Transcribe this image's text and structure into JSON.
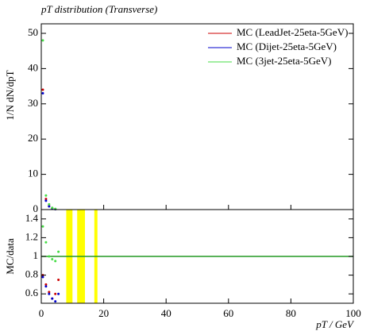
{
  "chart_data": [
    {
      "type": "scatter",
      "title": "pT distribution (Transverse)",
      "y_label": "1/N dN/dpT",
      "xlim": [
        0,
        100
      ],
      "ylim": [
        0,
        52.7
      ],
      "yticks": [
        0,
        10,
        20,
        30,
        40,
        50
      ],
      "legend": "top-right",
      "series": [
        {
          "name": "MC (LeadJet-25eta-5GeV)",
          "color": "#cc0000",
          "x": [
            0.5,
            1.5,
            2.5,
            3.5,
            4.5
          ],
          "values": [
            34,
            3,
            1,
            0.3,
            0.1
          ]
        },
        {
          "name": "MC (Dijet-25eta-5GeV)",
          "color": "#0000cc",
          "x": [
            0.5,
            1.5,
            2.5,
            3.5,
            4.5
          ],
          "values": [
            33,
            2.5,
            0.9,
            0.3,
            0.1
          ]
        },
        {
          "name": "MC (3jet-25eta-5GeV)",
          "color": "#44dd44",
          "x": [
            0.5,
            1.5,
            2.5,
            3.5,
            4.5
          ],
          "values": [
            48,
            4,
            1.5,
            0.5,
            0.2
          ]
        }
      ]
    },
    {
      "type": "ratio",
      "y_label": "MC/data",
      "x_label": "pT / GeV",
      "xlim": [
        0,
        100
      ],
      "xticks": [
        0,
        20,
        40,
        60,
        80,
        100
      ],
      "ylim": [
        0.5,
        1.5
      ],
      "yticks": [
        0.6,
        0.8,
        1,
        1.2,
        1.4
      ],
      "reference": 1,
      "reference_color": "#229922",
      "bands": [
        [
          8,
          10
        ],
        [
          11.5,
          14
        ],
        [
          17,
          18
        ]
      ],
      "band_color": "#ffff00",
      "series": [
        {
          "color": "#cc0000",
          "x": [
            0.5,
            1.5,
            2.5,
            3.5,
            4.5,
            5.5
          ],
          "values": [
            0.8,
            0.7,
            0.62,
            0.55,
            0.6,
            0.75
          ]
        },
        {
          "color": "#0000cc",
          "x": [
            0.5,
            1.5,
            2.5,
            3.5,
            4.5,
            5.5
          ],
          "values": [
            0.78,
            0.68,
            0.6,
            0.55,
            0.52,
            0.6
          ]
        },
        {
          "color": "#44dd44",
          "x": [
            0.5,
            1.5,
            2.5,
            3.5,
            4.5,
            5.5
          ],
          "values": [
            1.32,
            1.15,
            1,
            0.97,
            0.95,
            1.05
          ]
        }
      ]
    }
  ]
}
